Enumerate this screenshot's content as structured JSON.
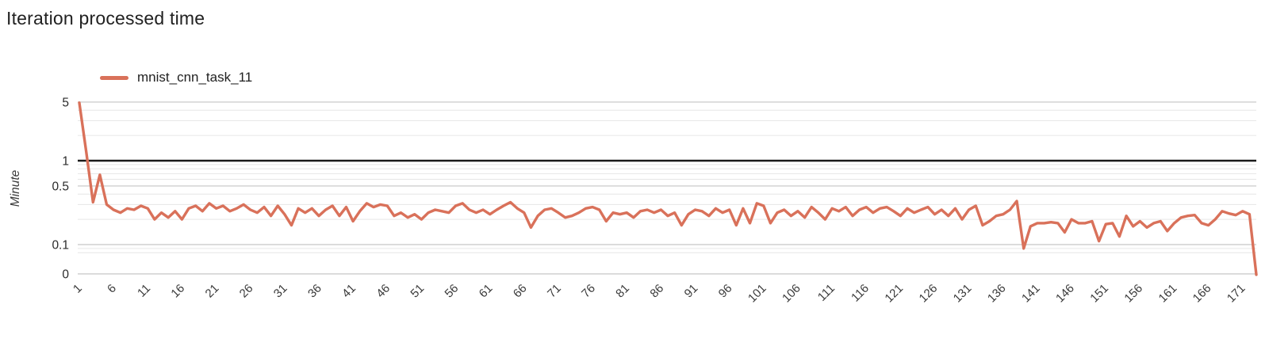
{
  "header": {
    "title": "Iteration processed time"
  },
  "legend": {
    "position": "top-left",
    "items": [
      {
        "label": "mnist_cnn_task_11",
        "color": "#d9715a"
      }
    ]
  },
  "colors": {
    "background": "#ffffff",
    "series": "#d9715a",
    "grid_major": "#cfcfcf",
    "grid_minor": "#e6e6e6",
    "one_baseline": "#1a1a1a",
    "title_text": "#212121",
    "tick_text": "#3a3a3a"
  },
  "chart_data": {
    "type": "line",
    "title": "Iteration processed time",
    "xlabel": "",
    "ylabel": "Minute",
    "yscale": "log",
    "grid": true,
    "legend_position": "top-left",
    "n_points": 173,
    "x_description": "iteration number; point i has x = i (1..173)",
    "x_tick_labels": [
      1,
      6,
      11,
      16,
      21,
      26,
      31,
      36,
      41,
      46,
      51,
      56,
      61,
      66,
      71,
      76,
      81,
      86,
      91,
      96,
      101,
      106,
      111,
      116,
      121,
      126,
      131,
      136,
      141,
      146,
      151,
      156,
      161,
      166,
      171
    ],
    "y_ticks": [
      {
        "label": "5",
        "value": 5
      },
      {
        "label": "1",
        "value": 1
      },
      {
        "label": "0.5",
        "value": 0.5
      },
      {
        "label": "0.1",
        "value": 0.1
      },
      {
        "label": "0",
        "value": 0
      }
    ],
    "minor_gridlines": [
      4,
      3,
      2,
      0.9,
      0.8,
      0.7,
      0.6,
      0.4,
      0.3,
      0.2,
      0.09,
      0.08
    ],
    "dark_baseline_value": 1,
    "series": [
      {
        "name": "mnist_cnn_task_11",
        "color": "#d9715a",
        "values": [
          4.9,
          1.3,
          0.32,
          0.68,
          0.3,
          0.26,
          0.24,
          0.27,
          0.26,
          0.29,
          0.27,
          0.2,
          0.24,
          0.21,
          0.25,
          0.2,
          0.27,
          0.29,
          0.25,
          0.31,
          0.27,
          0.29,
          0.25,
          0.27,
          0.3,
          0.26,
          0.24,
          0.28,
          0.22,
          0.29,
          0.23,
          0.17,
          0.27,
          0.24,
          0.27,
          0.22,
          0.26,
          0.29,
          0.22,
          0.28,
          0.19,
          0.25,
          0.31,
          0.28,
          0.3,
          0.29,
          0.22,
          0.24,
          0.21,
          0.23,
          0.2,
          0.24,
          0.26,
          0.25,
          0.24,
          0.29,
          0.31,
          0.26,
          0.24,
          0.26,
          0.23,
          0.26,
          0.29,
          0.32,
          0.27,
          0.24,
          0.16,
          0.22,
          0.26,
          0.27,
          0.24,
          0.21,
          0.22,
          0.24,
          0.27,
          0.28,
          0.26,
          0.19,
          0.24,
          0.23,
          0.24,
          0.21,
          0.25,
          0.26,
          0.24,
          0.26,
          0.22,
          0.24,
          0.17,
          0.23,
          0.26,
          0.25,
          0.22,
          0.27,
          0.24,
          0.26,
          0.17,
          0.27,
          0.18,
          0.31,
          0.29,
          0.18,
          0.24,
          0.26,
          0.22,
          0.25,
          0.21,
          0.28,
          0.24,
          0.2,
          0.27,
          0.25,
          0.28,
          0.22,
          0.26,
          0.28,
          0.24,
          0.27,
          0.28,
          0.25,
          0.22,
          0.27,
          0.24,
          0.26,
          0.28,
          0.23,
          0.26,
          0.22,
          0.27,
          0.2,
          0.26,
          0.29,
          0.17,
          0.19,
          0.22,
          0.23,
          0.26,
          0.33,
          0.09,
          0.165,
          0.18,
          0.18,
          0.185,
          0.18,
          0.14,
          0.2,
          0.18,
          0.18,
          0.19,
          0.11,
          0.175,
          0.18,
          0.125,
          0.22,
          0.165,
          0.19,
          0.16,
          0.18,
          0.19,
          0.145,
          0.18,
          0.21,
          0.22,
          0.225,
          0.18,
          0.17,
          0.2,
          0.25,
          0.235,
          0.225,
          0.25,
          0.23,
          0.03
        ]
      }
    ]
  }
}
